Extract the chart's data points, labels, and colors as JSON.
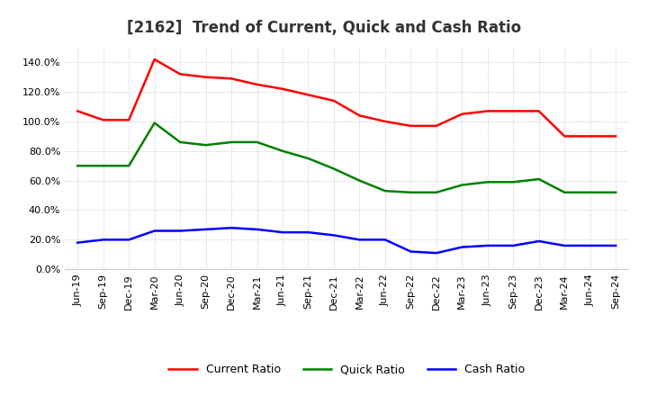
{
  "title": "[2162]  Trend of Current, Quick and Cash Ratio",
  "x_labels": [
    "Jun-19",
    "Sep-19",
    "Dec-19",
    "Mar-20",
    "Jun-20",
    "Sep-20",
    "Dec-20",
    "Mar-21",
    "Jun-21",
    "Sep-21",
    "Dec-21",
    "Mar-22",
    "Jun-22",
    "Sep-22",
    "Dec-22",
    "Mar-23",
    "Jun-23",
    "Sep-23",
    "Dec-23",
    "Mar-24",
    "Jun-24",
    "Sep-24"
  ],
  "current_ratio": [
    1.07,
    1.01,
    1.01,
    1.42,
    1.32,
    1.3,
    1.29,
    1.25,
    1.22,
    1.18,
    1.14,
    1.04,
    1.0,
    0.97,
    0.97,
    1.05,
    1.07,
    1.07,
    1.07,
    0.9,
    0.9,
    0.9
  ],
  "quick_ratio": [
    0.7,
    0.7,
    0.7,
    0.99,
    0.86,
    0.84,
    0.86,
    0.86,
    0.8,
    0.75,
    0.68,
    0.6,
    0.53,
    0.52,
    0.52,
    0.57,
    0.59,
    0.59,
    0.61,
    0.52,
    0.52,
    0.52
  ],
  "cash_ratio": [
    0.18,
    0.2,
    0.2,
    0.26,
    0.26,
    0.27,
    0.28,
    0.27,
    0.25,
    0.25,
    0.23,
    0.2,
    0.2,
    0.12,
    0.11,
    0.15,
    0.16,
    0.16,
    0.19,
    0.16,
    0.16,
    0.16
  ],
  "current_color": "#FF0000",
  "quick_color": "#008000",
  "cash_color": "#0000FF",
  "ylim": [
    0.0,
    1.5
  ],
  "yticks": [
    0.0,
    0.2,
    0.4,
    0.6,
    0.8,
    1.0,
    1.2,
    1.4
  ],
  "ytick_labels": [
    "0.0%",
    "20.0%",
    "40.0%",
    "60.0%",
    "80.0%",
    "100.0%",
    "120.0%",
    "140.0%"
  ],
  "background_color": "#FFFFFF",
  "plot_bg_color": "#FFFFFF",
  "grid_color": "#BBBBBB",
  "legend_labels": [
    "Current Ratio",
    "Quick Ratio",
    "Cash Ratio"
  ],
  "line_width": 1.8,
  "title_fontsize": 12,
  "tick_fontsize": 8,
  "legend_fontsize": 9
}
